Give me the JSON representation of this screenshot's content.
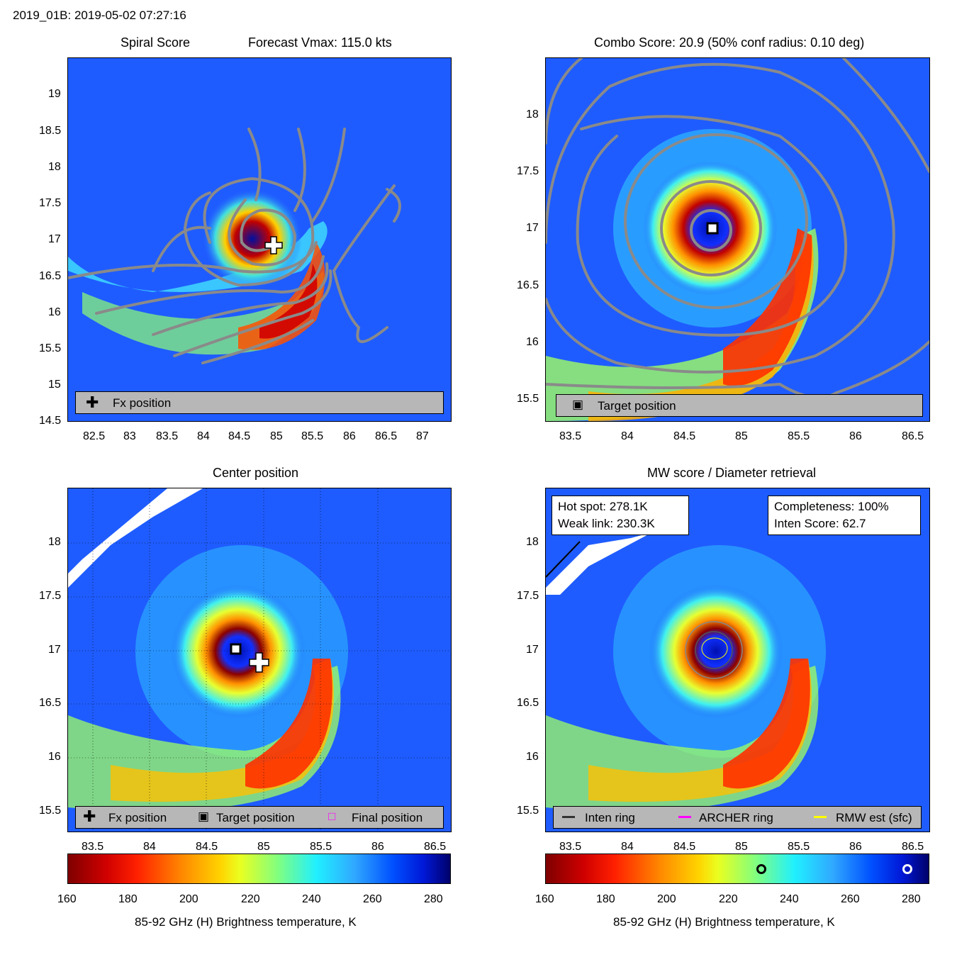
{
  "header": {
    "storm_time": "2019_01B: 2019-05-02 07:27:16"
  },
  "panels": {
    "spiral": {
      "title_left": "Spiral Score",
      "title_right": "Forecast Vmax: 115.0 kts",
      "legend": {
        "fx_label": "Fx position"
      },
      "x_ticks": [
        "82.5",
        "83",
        "83.5",
        "84",
        "84.5",
        "85",
        "85.5",
        "86",
        "86.5",
        "87"
      ],
      "y_ticks": [
        "19",
        "18.5",
        "18",
        "17.5",
        "17",
        "16.5",
        "16",
        "15.5",
        "15",
        "14.5"
      ]
    },
    "combo": {
      "title": "Combo Score: 20.9  (50% conf radius: 0.10 deg)",
      "legend": {
        "target_label": "Target position"
      },
      "x_ticks": [
        "83.5",
        "84",
        "84.5",
        "85",
        "85.5",
        "86",
        "86.5"
      ],
      "y_ticks": [
        "18",
        "17.5",
        "17",
        "16.5",
        "16",
        "15.5"
      ]
    },
    "center": {
      "title": "Center position",
      "legend": {
        "fx_label": "Fx position",
        "target_label": "Target position",
        "final_label": "Final position"
      },
      "x_ticks": [
        "83.5",
        "84",
        "84.5",
        "85",
        "85.5",
        "86",
        "86.5"
      ],
      "y_ticks": [
        "18",
        "17.5",
        "17",
        "16.5",
        "16",
        "15.5"
      ],
      "colorbar_ticks": [
        "160",
        "180",
        "200",
        "220",
        "240",
        "260",
        "280"
      ],
      "colorbar_label": "85-92 GHz (H) Brightness temperature, K"
    },
    "mw": {
      "title": "MW score / Diameter retrieval",
      "hot_spot": "Hot spot: 278.1K",
      "weak_link": "Weak link: 230.3K",
      "completeness": "Completeness: 100%",
      "inten_score": "Inten Score: 62.7",
      "legend": {
        "inten_ring": "Inten ring",
        "archer_ring": "ARCHER ring",
        "rmw_est": "RMW est (sfc)"
      },
      "x_ticks": [
        "83.5",
        "84",
        "84.5",
        "85",
        "85.5",
        "86",
        "86.5"
      ],
      "y_ticks": [
        "18",
        "17.5",
        "17",
        "16.5",
        "16",
        "15.5"
      ],
      "colorbar_ticks": [
        "160",
        "180",
        "200",
        "220",
        "240",
        "260",
        "280"
      ],
      "colorbar_label": "85-92 GHz (H) Brightness temperature, K",
      "colorbar_markers_k": [
        230.3,
        278.1
      ]
    }
  },
  "colors": {
    "background_field": "#1f5cff",
    "legend_bg": "#b7b7b7",
    "contour": "#8a8a8a",
    "archer_ring": "#ff00ff",
    "rmw_est": "#ffff00",
    "inten_ring": "#333333"
  }
}
